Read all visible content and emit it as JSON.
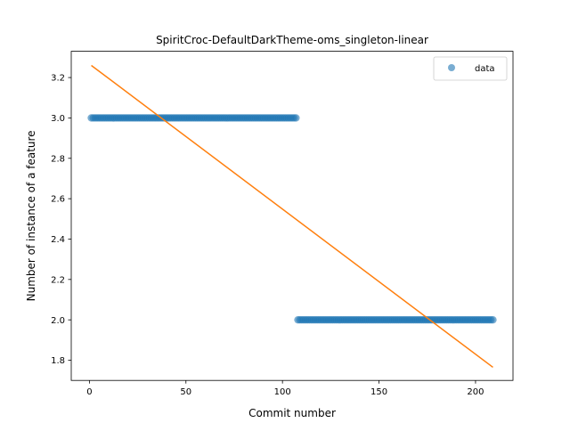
{
  "chart_data": {
    "type": "scatter",
    "title": "SpiritCroc-DefaultDarkTheme-oms_singleton-linear",
    "xlabel": "Commit number",
    "ylabel": "Number of instance of a feature",
    "xlim": [
      -9.4,
      219.4
    ],
    "ylim": [
      1.7,
      3.33
    ],
    "xticks": [
      0,
      50,
      100,
      150,
      200
    ],
    "xtick_labels": [
      "0",
      "50",
      "100",
      "150",
      "200"
    ],
    "yticks": [
      1.8,
      2.0,
      2.2,
      2.4,
      2.6,
      2.8,
      3.0,
      3.2
    ],
    "ytick_labels": [
      "1.8",
      "2.0",
      "2.2",
      "2.4",
      "2.6",
      "2.8",
      "3.0",
      "3.2"
    ],
    "grid": false,
    "legend_position": "top-right",
    "series": [
      {
        "name": "data",
        "kind": "scatter",
        "color": "#1f77b4",
        "segments": [
          {
            "x_start": 1,
            "x_end": 107,
            "y": 3.0
          },
          {
            "x_start": 108,
            "x_end": 209,
            "y": 2.0
          }
        ]
      },
      {
        "kind": "line",
        "color": "#ff7f0e",
        "x": [
          1,
          209
        ],
        "y": [
          3.26,
          1.765
        ]
      }
    ]
  }
}
